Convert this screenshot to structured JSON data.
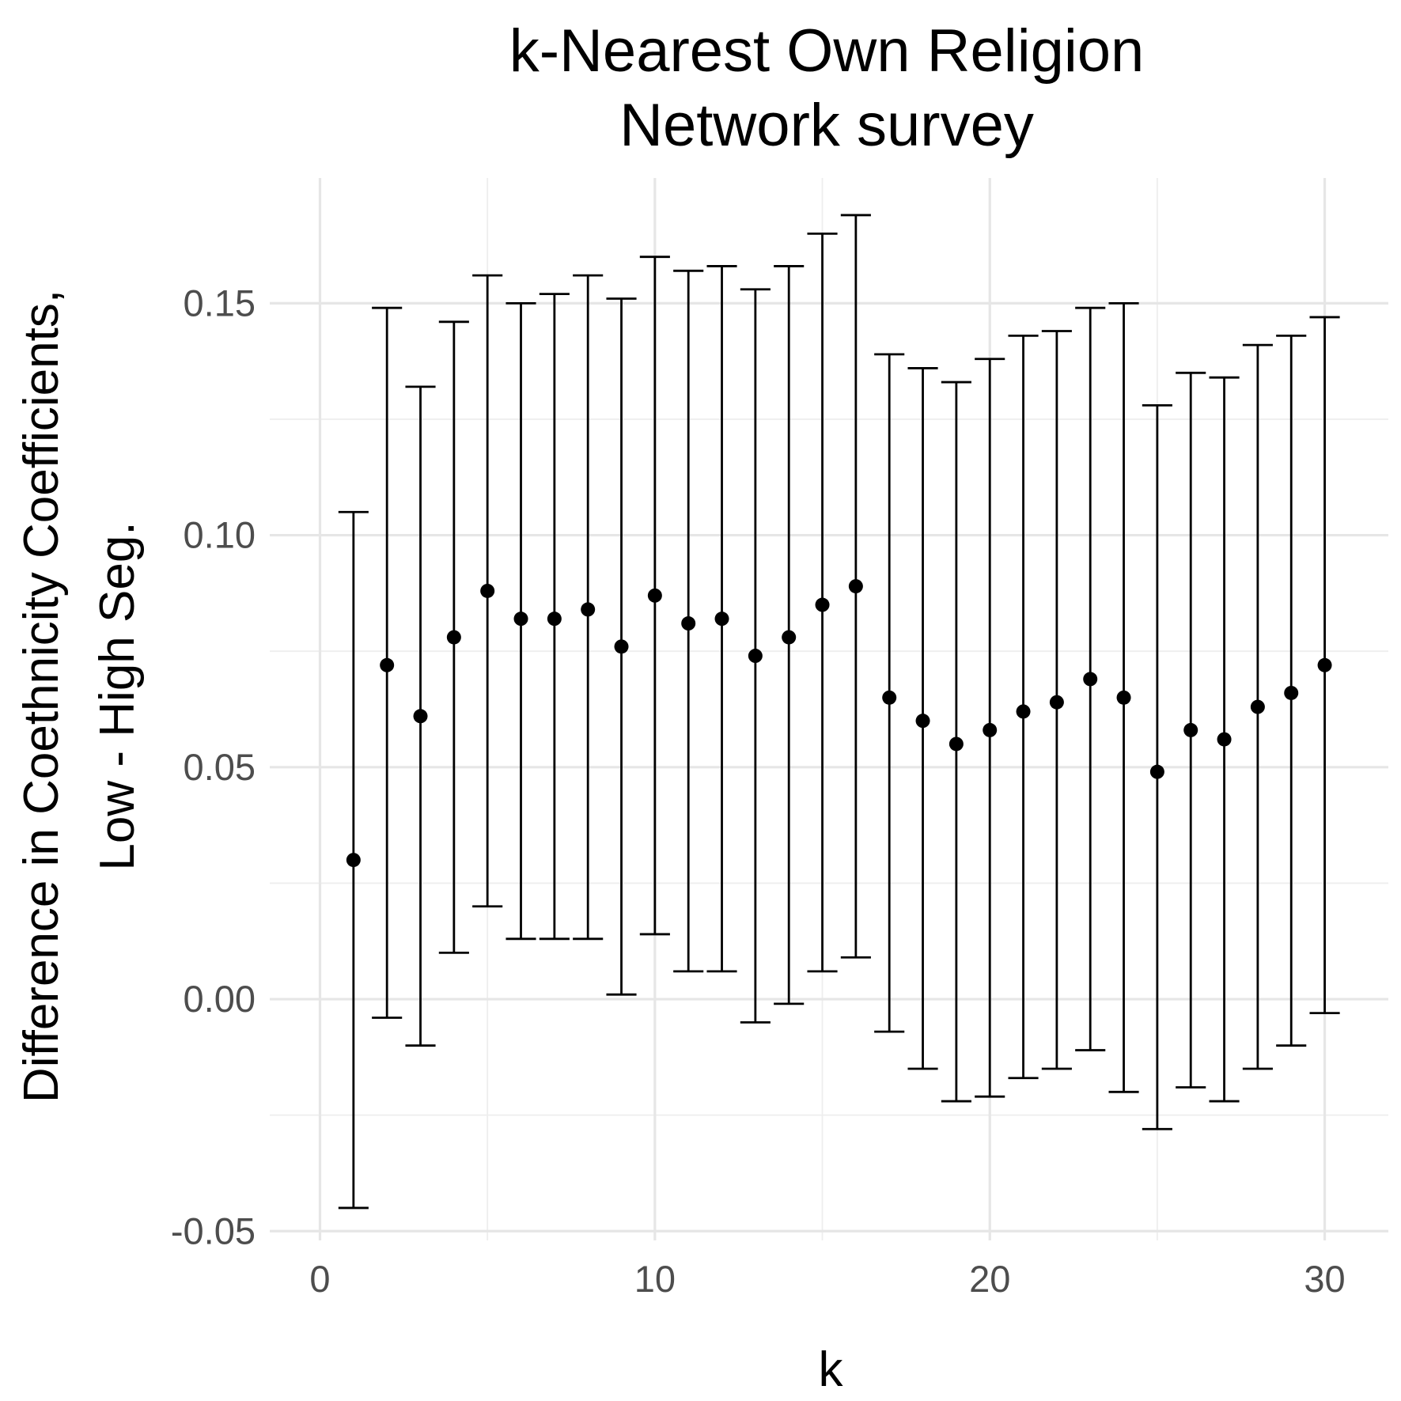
{
  "chart_data": {
    "type": "scatter",
    "title_lines": [
      "k-Nearest Own Religion",
      "Network survey"
    ],
    "xlabel": "k",
    "ylabel_lines": [
      "Difference in Coethnicity Coefficients,",
      "Low - High Seg."
    ],
    "xlim": [
      -1.5,
      31.9
    ],
    "ylim": [
      -0.052,
      0.177
    ],
    "x_ticks": [
      0,
      10,
      20,
      30
    ],
    "x_tick_labels": [
      "0",
      "10",
      "20",
      "30"
    ],
    "y_ticks": [
      -0.05,
      0.0,
      0.05,
      0.1,
      0.15
    ],
    "y_tick_labels": [
      "-0.05",
      "0.00",
      "0.05",
      "0.10",
      "0.15"
    ],
    "grid": true,
    "series": [
      {
        "points": [
          {
            "k": 1,
            "estimate": 0.03,
            "lower": -0.045,
            "upper": 0.105
          },
          {
            "k": 2,
            "estimate": 0.072,
            "lower": -0.004,
            "upper": 0.149
          },
          {
            "k": 3,
            "estimate": 0.061,
            "lower": -0.01,
            "upper": 0.132
          },
          {
            "k": 4,
            "estimate": 0.078,
            "lower": 0.01,
            "upper": 0.146
          },
          {
            "k": 5,
            "estimate": 0.088,
            "lower": 0.02,
            "upper": 0.156
          },
          {
            "k": 6,
            "estimate": 0.082,
            "lower": 0.013,
            "upper": 0.15
          },
          {
            "k": 7,
            "estimate": 0.082,
            "lower": 0.013,
            "upper": 0.152
          },
          {
            "k": 8,
            "estimate": 0.084,
            "lower": 0.013,
            "upper": 0.156
          },
          {
            "k": 9,
            "estimate": 0.076,
            "lower": 0.001,
            "upper": 0.151
          },
          {
            "k": 10,
            "estimate": 0.087,
            "lower": 0.014,
            "upper": 0.16
          },
          {
            "k": 11,
            "estimate": 0.081,
            "lower": 0.006,
            "upper": 0.157
          },
          {
            "k": 12,
            "estimate": 0.082,
            "lower": 0.006,
            "upper": 0.158
          },
          {
            "k": 13,
            "estimate": 0.074,
            "lower": -0.005,
            "upper": 0.153
          },
          {
            "k": 14,
            "estimate": 0.078,
            "lower": -0.001,
            "upper": 0.158
          },
          {
            "k": 15,
            "estimate": 0.085,
            "lower": 0.006,
            "upper": 0.165
          },
          {
            "k": 16,
            "estimate": 0.089,
            "lower": 0.009,
            "upper": 0.169
          },
          {
            "k": 17,
            "estimate": 0.065,
            "lower": -0.007,
            "upper": 0.139
          },
          {
            "k": 18,
            "estimate": 0.06,
            "lower": -0.015,
            "upper": 0.136
          },
          {
            "k": 19,
            "estimate": 0.055,
            "lower": -0.022,
            "upper": 0.133
          },
          {
            "k": 20,
            "estimate": 0.058,
            "lower": -0.021,
            "upper": 0.138
          },
          {
            "k": 21,
            "estimate": 0.062,
            "lower": -0.017,
            "upper": 0.143
          },
          {
            "k": 22,
            "estimate": 0.064,
            "lower": -0.015,
            "upper": 0.144
          },
          {
            "k": 23,
            "estimate": 0.069,
            "lower": -0.011,
            "upper": 0.149
          },
          {
            "k": 24,
            "estimate": 0.065,
            "lower": -0.02,
            "upper": 0.15
          },
          {
            "k": 25,
            "estimate": 0.049,
            "lower": -0.028,
            "upper": 0.128
          },
          {
            "k": 26,
            "estimate": 0.058,
            "lower": -0.019,
            "upper": 0.135
          },
          {
            "k": 27,
            "estimate": 0.056,
            "lower": -0.022,
            "upper": 0.134
          },
          {
            "k": 28,
            "estimate": 0.063,
            "lower": -0.015,
            "upper": 0.141
          },
          {
            "k": 29,
            "estimate": 0.066,
            "lower": -0.01,
            "upper": 0.143
          },
          {
            "k": 30,
            "estimate": 0.072,
            "lower": -0.003,
            "upper": 0.147
          }
        ]
      }
    ]
  }
}
